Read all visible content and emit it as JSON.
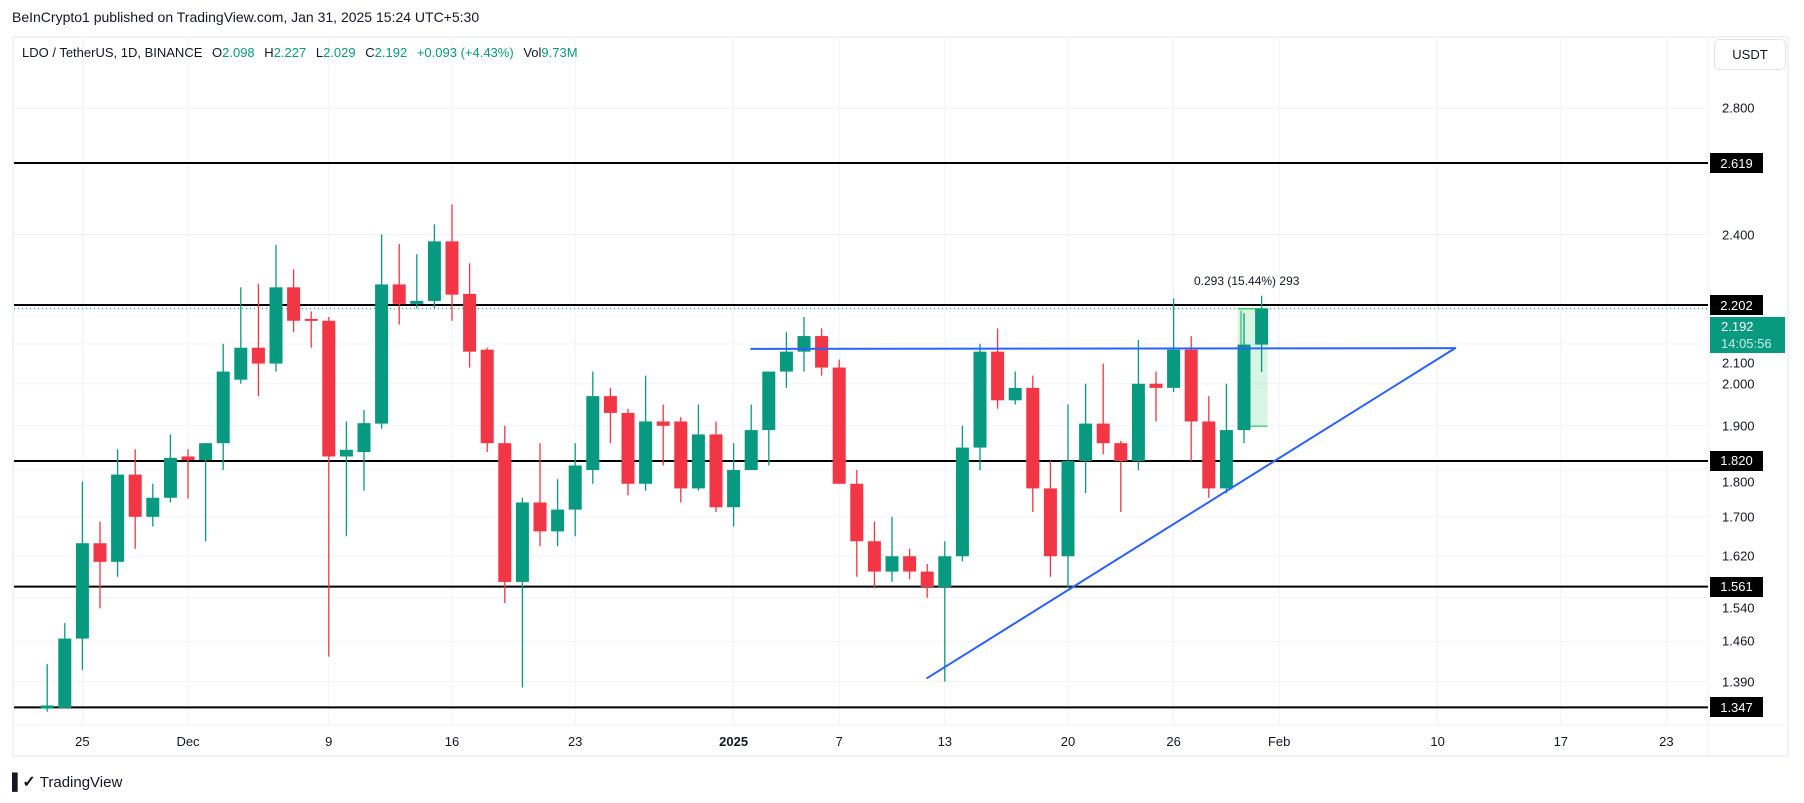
{
  "header": {
    "publisher": "BeInCrypto1 published on TradingView.com, Jan 31, 2025 15:24 UTC+5:30"
  },
  "legend": {
    "symbol": "LDO / TetherUS, 1D, BINANCE",
    "o_label": "O",
    "o": "2.098",
    "h_label": "H",
    "h": "2.227",
    "l_label": "L",
    "l": "2.029",
    "c_label": "C",
    "c": "2.192",
    "change": "+0.093 (+4.43%)",
    "vol_label": "Vol",
    "vol": "9.73M"
  },
  "price_axis": {
    "unit_button": "USDT",
    "current_price": "2.192",
    "countdown": "14:05:56"
  },
  "measure": {
    "label": "0.293 (15.44%) 293",
    "from_date": "2025-01-30",
    "to_date": "2025-01-31",
    "from_price": 1.899,
    "to_price": 2.192,
    "color": "#22c55e"
  },
  "branding": {
    "logo_text": "TradingView",
    "logo_mark": "TV"
  },
  "colors": {
    "up": "#089981",
    "down": "#F23645",
    "trendline": "#2962FF",
    "level": "#000000",
    "grid": "#f0f3fa"
  },
  "chart_data": {
    "type": "candlestick",
    "title": "LDO / TetherUS, 1D, BINANCE",
    "y_scale": "log",
    "ylim": [
      1.33,
      2.95
    ],
    "xlim": [
      "2024-11-21",
      "2025-02-26"
    ],
    "grid": true,
    "y_ticks": [
      {
        "value": 2.8,
        "label": "2.800"
      },
      {
        "value": 2.4,
        "label": "2.400"
      },
      {
        "value": 2.1,
        "label": "2.100"
      },
      {
        "value": 2.0,
        "label": "2.000"
      },
      {
        "value": 1.9,
        "label": "1.900"
      },
      {
        "value": 1.8,
        "label": "1.800"
      },
      {
        "value": 1.7,
        "label": "1.700"
      },
      {
        "value": 1.62,
        "label": "1.620"
      },
      {
        "value": 1.54,
        "label": "1.540"
      },
      {
        "value": 1.46,
        "label": "1.460"
      },
      {
        "value": 1.39,
        "label": "1.390"
      }
    ],
    "x_ticks": [
      {
        "date": "2024-11-25",
        "label": "25"
      },
      {
        "date": "2024-12-01",
        "label": "Dec"
      },
      {
        "date": "2024-12-09",
        "label": "9"
      },
      {
        "date": "2024-12-16",
        "label": "16"
      },
      {
        "date": "2024-12-23",
        "label": "23"
      },
      {
        "date": "2025-01-01",
        "label": "2025",
        "bold": true
      },
      {
        "date": "2025-01-07",
        "label": "7"
      },
      {
        "date": "2025-01-13",
        "label": "13"
      },
      {
        "date": "2025-01-20",
        "label": "20"
      },
      {
        "date": "2025-01-26",
        "label": "26"
      },
      {
        "date": "2025-02-01",
        "label": "Feb"
      },
      {
        "date": "2025-02-10",
        "label": "10"
      },
      {
        "date": "2025-02-17",
        "label": "17"
      },
      {
        "date": "2025-02-23",
        "label": "23"
      }
    ],
    "levels": [
      {
        "value": 2.619,
        "label": "2.619"
      },
      {
        "value": 2.202,
        "label": "2.202"
      },
      {
        "value": 1.82,
        "label": "1.820"
      },
      {
        "value": 1.561,
        "label": "1.561"
      },
      {
        "value": 1.347,
        "label": "1.347"
      }
    ],
    "trendlines": [
      {
        "from": [
          "2025-01-02",
          2.087
        ],
        "to": [
          "2025-02-11",
          2.089
        ]
      },
      {
        "from": [
          "2025-01-12",
          1.396
        ],
        "to": [
          "2025-02-11",
          2.089
        ]
      }
    ],
    "candles_fields": [
      "date",
      "open",
      "high",
      "low",
      "close"
    ],
    "candles": [
      [
        "2024-11-23",
        1.345,
        1.42,
        1.34,
        1.35
      ],
      [
        "2024-11-24",
        1.346,
        1.493,
        1.345,
        1.465
      ],
      [
        "2024-11-25",
        1.465,
        1.775,
        1.41,
        1.646
      ],
      [
        "2024-11-26",
        1.646,
        1.69,
        1.52,
        1.609
      ],
      [
        "2024-11-27",
        1.609,
        1.846,
        1.58,
        1.79
      ],
      [
        "2024-11-28",
        1.79,
        1.846,
        1.635,
        1.7
      ],
      [
        "2024-11-29",
        1.7,
        1.77,
        1.68,
        1.74
      ],
      [
        "2024-11-30",
        1.74,
        1.88,
        1.73,
        1.827
      ],
      [
        "2024-12-01",
        1.83,
        1.846,
        1.738,
        1.822
      ],
      [
        "2024-12-02",
        1.822,
        1.86,
        1.65,
        1.86
      ],
      [
        "2024-12-03",
        1.86,
        2.1,
        1.8,
        2.03
      ],
      [
        "2024-12-04",
        2.01,
        2.25,
        2.0,
        2.09
      ],
      [
        "2024-12-05",
        2.09,
        2.26,
        1.97,
        2.05
      ],
      [
        "2024-12-06",
        2.05,
        2.37,
        2.03,
        2.25
      ],
      [
        "2024-12-07",
        2.25,
        2.3,
        2.13,
        2.16
      ],
      [
        "2024-12-08",
        2.165,
        2.185,
        2.09,
        2.16
      ],
      [
        "2024-12-09",
        2.16,
        2.17,
        1.433,
        1.83
      ],
      [
        "2024-12-10",
        1.83,
        1.91,
        1.66,
        1.845
      ],
      [
        "2024-12-11",
        1.84,
        1.937,
        1.755,
        1.906
      ],
      [
        "2024-12-12",
        1.905,
        2.4,
        1.893,
        2.258
      ],
      [
        "2024-12-13",
        2.258,
        2.373,
        2.15,
        2.205
      ],
      [
        "2024-12-14",
        2.205,
        2.343,
        2.193,
        2.213
      ],
      [
        "2024-12-15",
        2.213,
        2.43,
        2.193,
        2.38
      ],
      [
        "2024-12-16",
        2.38,
        2.49,
        2.16,
        2.23
      ],
      [
        "2024-12-17",
        2.232,
        2.317,
        2.04,
        2.08
      ],
      [
        "2024-12-18",
        2.085,
        2.09,
        1.84,
        1.86
      ],
      [
        "2024-12-19",
        1.86,
        1.9,
        1.53,
        1.57
      ],
      [
        "2024-12-20",
        1.57,
        1.74,
        1.38,
        1.73
      ],
      [
        "2024-12-21",
        1.73,
        1.86,
        1.64,
        1.67
      ],
      [
        "2024-12-22",
        1.67,
        1.78,
        1.64,
        1.715
      ],
      [
        "2024-12-23",
        1.715,
        1.86,
        1.66,
        1.81
      ],
      [
        "2024-12-24",
        1.8,
        2.03,
        1.77,
        1.97
      ],
      [
        "2024-12-25",
        1.97,
        1.99,
        1.86,
        1.93
      ],
      [
        "2024-12-26",
        1.93,
        1.94,
        1.745,
        1.77
      ],
      [
        "2024-12-27",
        1.77,
        2.02,
        1.755,
        1.91
      ],
      [
        "2024-12-28",
        1.91,
        1.95,
        1.81,
        1.9
      ],
      [
        "2024-12-29",
        1.91,
        1.92,
        1.73,
        1.76
      ],
      [
        "2024-12-30",
        1.76,
        1.95,
        1.755,
        1.88
      ],
      [
        "2024-12-31",
        1.88,
        1.91,
        1.71,
        1.72
      ],
      [
        "2025-01-01",
        1.72,
        1.86,
        1.68,
        1.8
      ],
      [
        "2025-01-02",
        1.8,
        1.95,
        1.8,
        1.89
      ],
      [
        "2025-01-03",
        1.89,
        2.03,
        1.81,
        2.03
      ],
      [
        "2025-01-04",
        2.03,
        2.13,
        1.99,
        2.08
      ],
      [
        "2025-01-05",
        2.08,
        2.17,
        2.03,
        2.12
      ],
      [
        "2025-01-06",
        2.12,
        2.14,
        2.02,
        2.04
      ],
      [
        "2025-01-07",
        2.04,
        2.06,
        1.77,
        1.77
      ],
      [
        "2025-01-08",
        1.77,
        1.8,
        1.58,
        1.65
      ],
      [
        "2025-01-09",
        1.65,
        1.69,
        1.56,
        1.59
      ],
      [
        "2025-01-10",
        1.59,
        1.7,
        1.57,
        1.62
      ],
      [
        "2025-01-11",
        1.62,
        1.635,
        1.575,
        1.59
      ],
      [
        "2025-01-12",
        1.59,
        1.605,
        1.54,
        1.56
      ],
      [
        "2025-01-13",
        1.56,
        1.65,
        1.39,
        1.62
      ],
      [
        "2025-01-14",
        1.62,
        1.9,
        1.61,
        1.85
      ],
      [
        "2025-01-15",
        1.85,
        2.1,
        1.8,
        2.08
      ],
      [
        "2025-01-16",
        2.08,
        2.14,
        1.94,
        1.96
      ],
      [
        "2025-01-17",
        1.96,
        2.03,
        1.95,
        1.99
      ],
      [
        "2025-01-18",
        1.99,
        2.02,
        1.71,
        1.76
      ],
      [
        "2025-01-19",
        1.76,
        1.82,
        1.58,
        1.62
      ],
      [
        "2025-01-20",
        1.62,
        1.95,
        1.56,
        1.82
      ],
      [
        "2025-01-21",
        1.82,
        2.0,
        1.75,
        1.905
      ],
      [
        "2025-01-22",
        1.905,
        2.05,
        1.835,
        1.86
      ],
      [
        "2025-01-23",
        1.86,
        1.865,
        1.71,
        1.82
      ],
      [
        "2025-01-24",
        1.82,
        2.11,
        1.8,
        2.0
      ],
      [
        "2025-01-25",
        2.0,
        2.03,
        1.91,
        1.99
      ],
      [
        "2025-01-26",
        1.99,
        2.22,
        1.98,
        2.085
      ],
      [
        "2025-01-27",
        2.085,
        2.12,
        1.82,
        1.91
      ],
      [
        "2025-01-28",
        1.91,
        1.97,
        1.74,
        1.76
      ],
      [
        "2025-01-29",
        1.76,
        2.0,
        1.75,
        1.89
      ],
      [
        "2025-01-30",
        1.89,
        2.18,
        1.86,
        2.098
      ],
      [
        "2025-01-31",
        2.098,
        2.227,
        2.029,
        2.192
      ]
    ]
  }
}
